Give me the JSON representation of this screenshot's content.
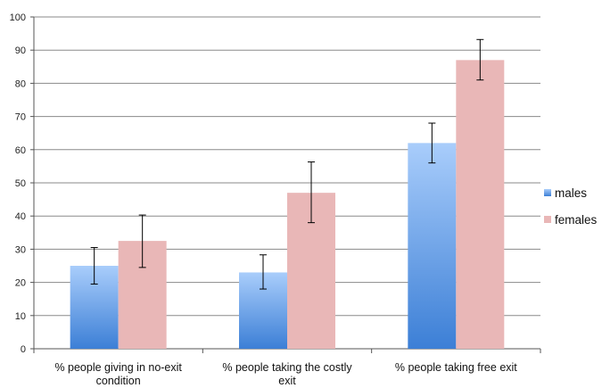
{
  "chart_data": {
    "type": "bar",
    "title": "",
    "xlabel": "",
    "ylabel": "",
    "ylim": [
      0,
      100
    ],
    "yticks": [
      0,
      10,
      20,
      30,
      40,
      50,
      60,
      70,
      80,
      90,
      100
    ],
    "grid": true,
    "legend_position": "right",
    "categories": [
      [
        "% people giving in no-exit",
        "condition"
      ],
      [
        "% people taking the costly",
        "exit"
      ],
      [
        "% people taking free exit"
      ]
    ],
    "series": [
      {
        "name": "males",
        "values": [
          25,
          23,
          62
        ],
        "error_low": [
          19.5,
          18,
          56
        ],
        "error_high": [
          30.5,
          28.3,
          68
        ],
        "color_top": "#a9cdfb",
        "color_bottom": "#3c7fd6"
      },
      {
        "name": "females",
        "values": [
          32.5,
          47,
          87
        ],
        "error_low": [
          24.5,
          38,
          81
        ],
        "error_high": [
          40.3,
          56.3,
          93.2
        ],
        "color_top": "#e9b7b7",
        "color_bottom": "#e9b7b7"
      }
    ]
  }
}
